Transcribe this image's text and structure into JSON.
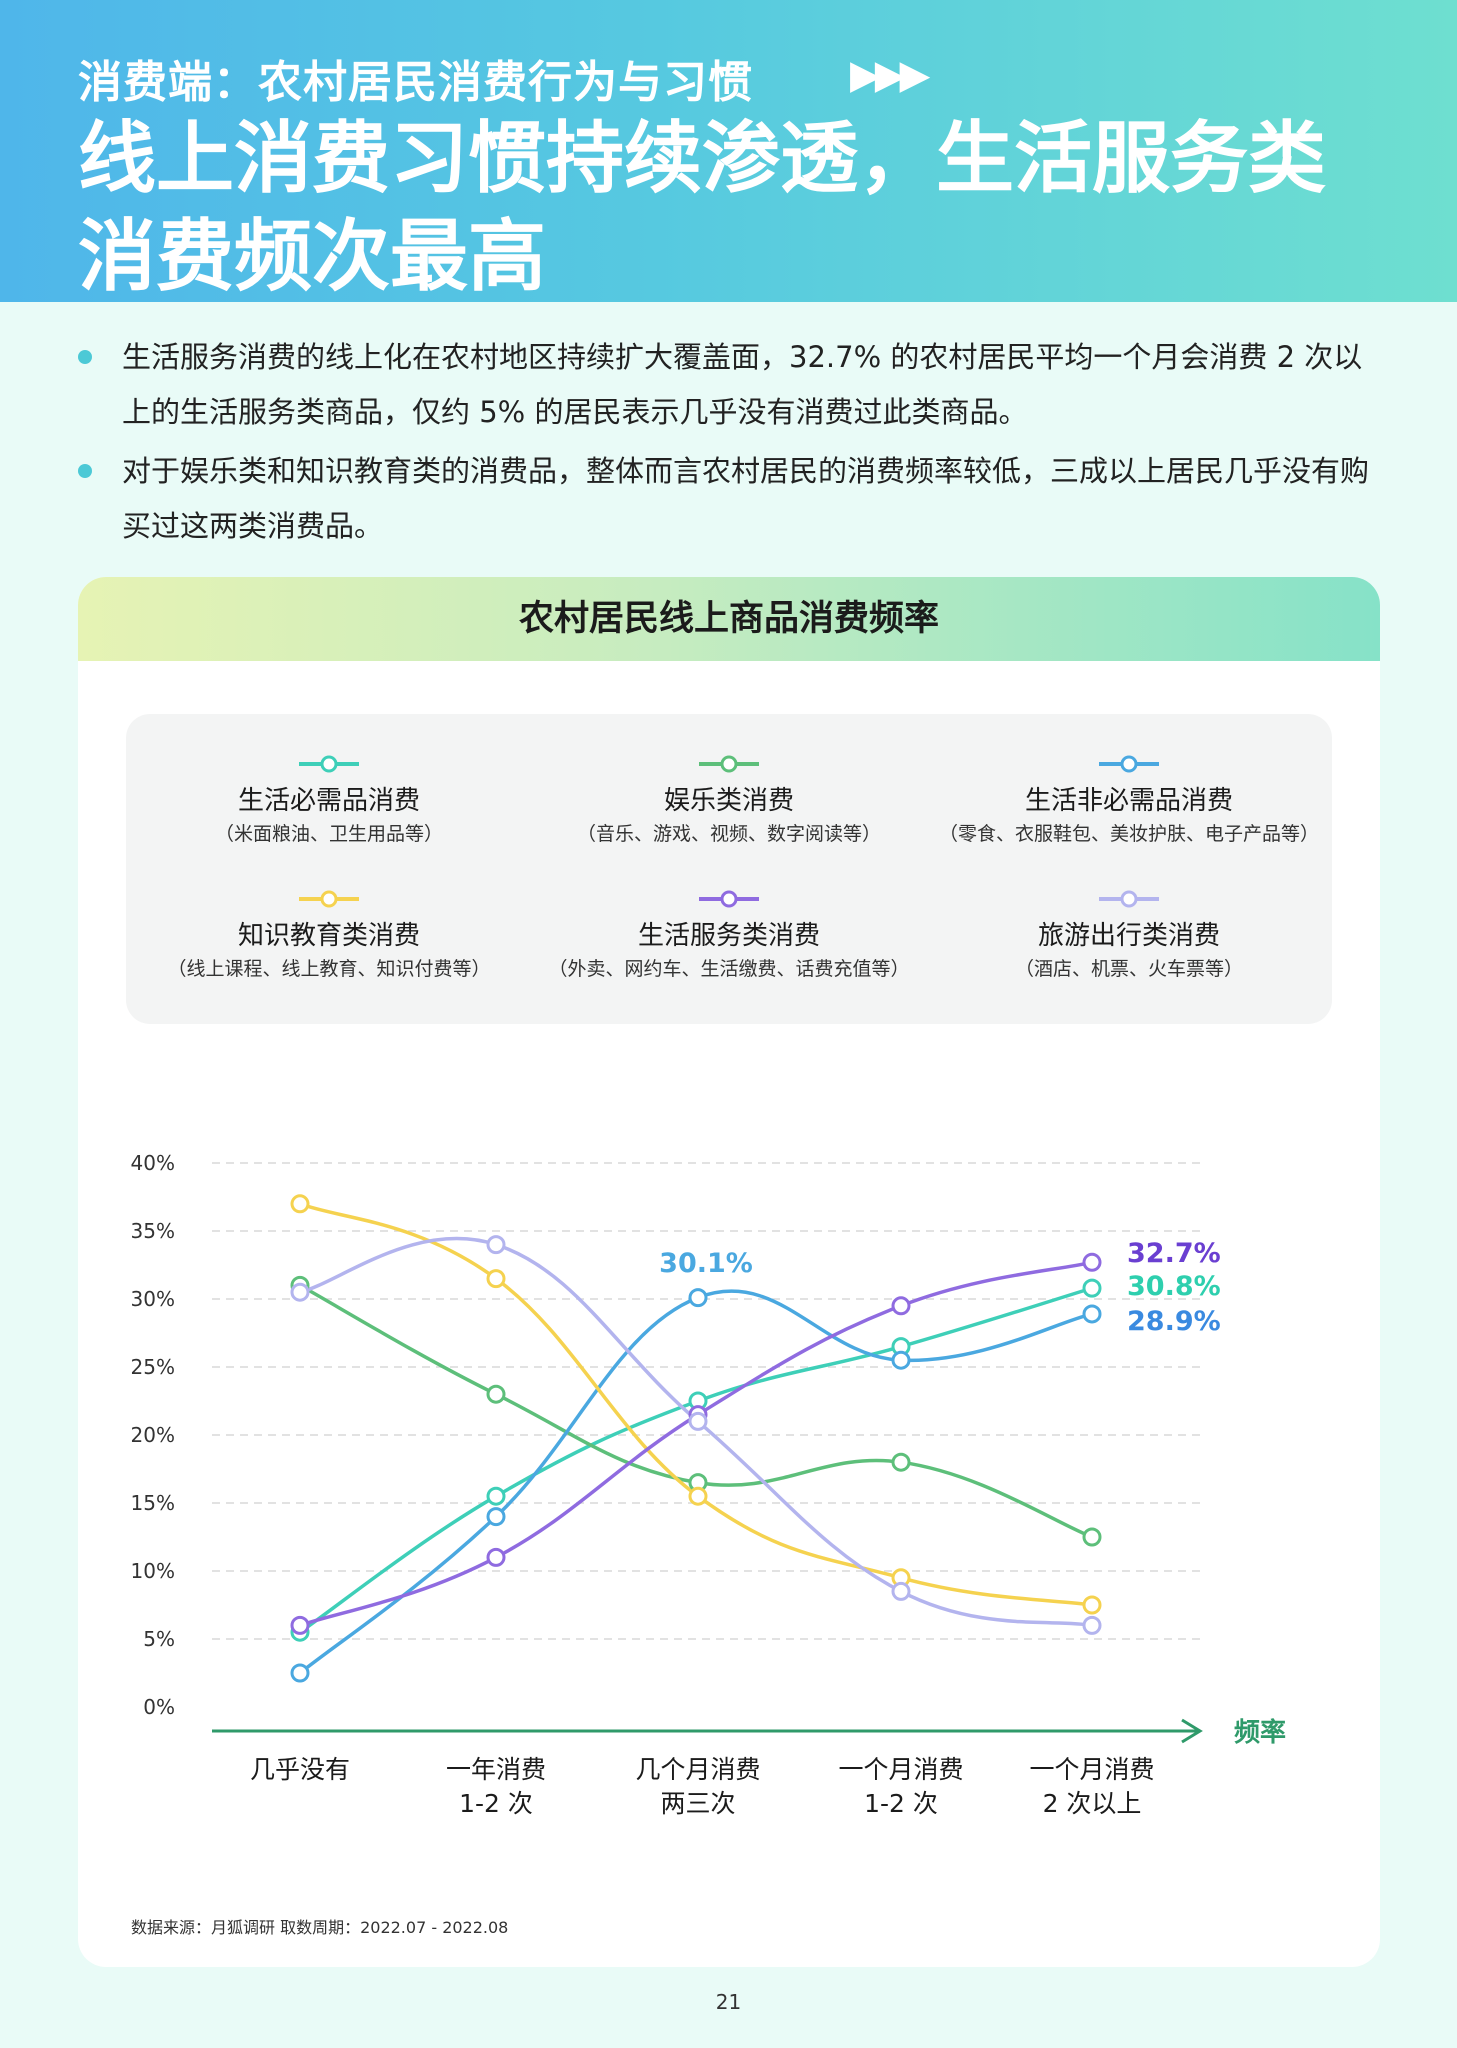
{
  "header": {
    "kicker": "消费端：农村居民消费行为与习惯",
    "arrows": "▶▶▶",
    "headline_line1": "线上消费习惯持续渗透，生活服务类",
    "headline_line2": "消费频次最高"
  },
  "bullets": [
    "生活服务消费的线上化在农村地区持续扩大覆盖面，32.7% 的农村居民平均一个月会消费 2 次以上的生活服务类商品，仅约 5% 的居民表示几乎没有消费过此类商品。",
    "对于娱乐类和知识教育类的消费品，整体而言农村居民的消费频率较低，三成以上居民几乎没有购买过这两类消费品。"
  ],
  "source": "数据来源：月狐调研  取数周期：2022.07 - 2022.08",
  "page_number": "21",
  "chart_data": {
    "type": "line",
    "title": "农村居民线上商品消费频率",
    "xlabel": "频率",
    "ylabel": "",
    "ylim": [
      0,
      40
    ],
    "yticks": [
      "0%",
      "5%",
      "10%",
      "15%",
      "20%",
      "25%",
      "30%",
      "35%",
      "40%"
    ],
    "grid": true,
    "legend_position": "top",
    "categories": [
      "几乎没有",
      "一年消费\n1-2 次",
      "几个月消费\n两三次",
      "一个月消费\n1-2 次",
      "一个月消费\n2 次以上"
    ],
    "series": [
      {
        "name": "生活必需品消费",
        "sub": "（米面粮油、卫生用品等）",
        "color": "#3ecfb8",
        "values": [
          5.5,
          15.5,
          22.5,
          26.5,
          30.8
        ]
      },
      {
        "name": "娱乐类消费",
        "sub": "（音乐、游戏、视频、数字阅读等）",
        "color": "#5dbf7a",
        "values": [
          31,
          23,
          16.5,
          18,
          12.5
        ]
      },
      {
        "name": "生活非必需品消费",
        "sub": "（零食、衣服鞋包、美妆护肤、电子产品等）",
        "color": "#4aa8e0",
        "values": [
          2.5,
          14,
          30.1,
          25.5,
          28.9
        ]
      },
      {
        "name": "知识教育类消费",
        "sub": "（线上课程、线上教育、知识付费等）",
        "color": "#f5d24f",
        "values": [
          37,
          31.5,
          15.5,
          9.5,
          7.5
        ]
      },
      {
        "name": "生活服务类消费",
        "sub": "（外卖、网约车、生活缴费、话费充值等）",
        "color": "#8f6be0",
        "values": [
          6,
          11,
          21.5,
          29.5,
          32.7
        ]
      },
      {
        "name": "旅游出行类消费",
        "sub": "（酒店、机票、火车票等）",
        "color": "#b3b4ee",
        "values": [
          30.5,
          34,
          21,
          8.5,
          6
        ]
      }
    ],
    "annotations": [
      {
        "text": "30.1%",
        "color": "#4aa8e0"
      },
      {
        "text": "32.7%",
        "color": "#6a3fd1"
      },
      {
        "text": "30.8%",
        "color": "#2ecfae"
      },
      {
        "text": "28.9%",
        "color": "#3a8ae0"
      }
    ]
  }
}
